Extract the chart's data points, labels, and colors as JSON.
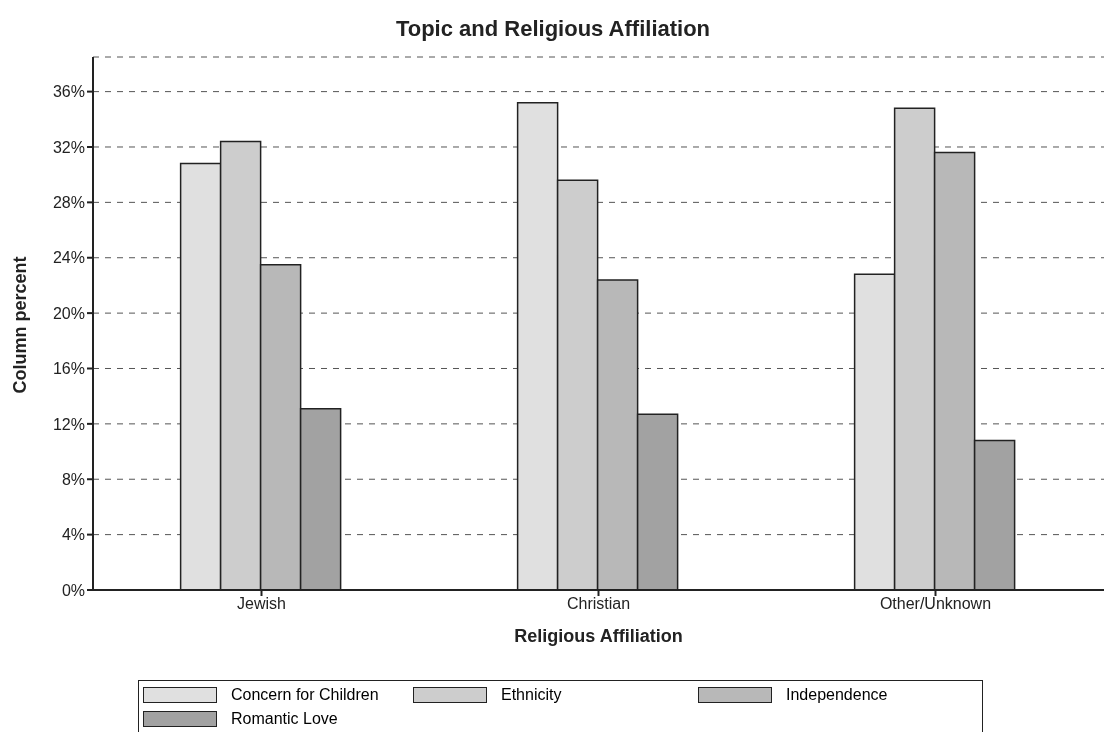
{
  "chart_data": {
    "type": "bar",
    "title": "Topic and Religious Affiliation",
    "xlabel": "Religious Affiliation",
    "ylabel": "Column percent",
    "categories": [
      "Jewish",
      "Christian",
      "Other/Unknown"
    ],
    "series": [
      {
        "name": "Concern for Children",
        "color": "#e0e0e0",
        "values": [
          30.8,
          35.2,
          22.8
        ]
      },
      {
        "name": "Ethnicity",
        "color": "#cdcdcd",
        "values": [
          32.4,
          29.6,
          34.8
        ]
      },
      {
        "name": "Independence",
        "color": "#b8b8b8",
        "values": [
          23.5,
          22.4,
          31.6
        ]
      },
      {
        "name": "Romantic Love",
        "color": "#a2a2a2",
        "values": [
          13.1,
          12.7,
          10.8
        ]
      }
    ],
    "ylim": [
      0,
      38.5
    ],
    "yticks": [
      {
        "value": 0,
        "label": "0%"
      },
      {
        "value": 4,
        "label": "4%"
      },
      {
        "value": 8,
        "label": "8%"
      },
      {
        "value": 12,
        "label": "12%"
      },
      {
        "value": 16,
        "label": "16%"
      },
      {
        "value": 20,
        "label": "20%"
      },
      {
        "value": 24,
        "label": "24%"
      },
      {
        "value": 28,
        "label": "28%"
      },
      {
        "value": 32,
        "label": "32%"
      },
      {
        "value": 36,
        "label": "36%"
      }
    ],
    "grid": "y",
    "legend": "bottom"
  }
}
